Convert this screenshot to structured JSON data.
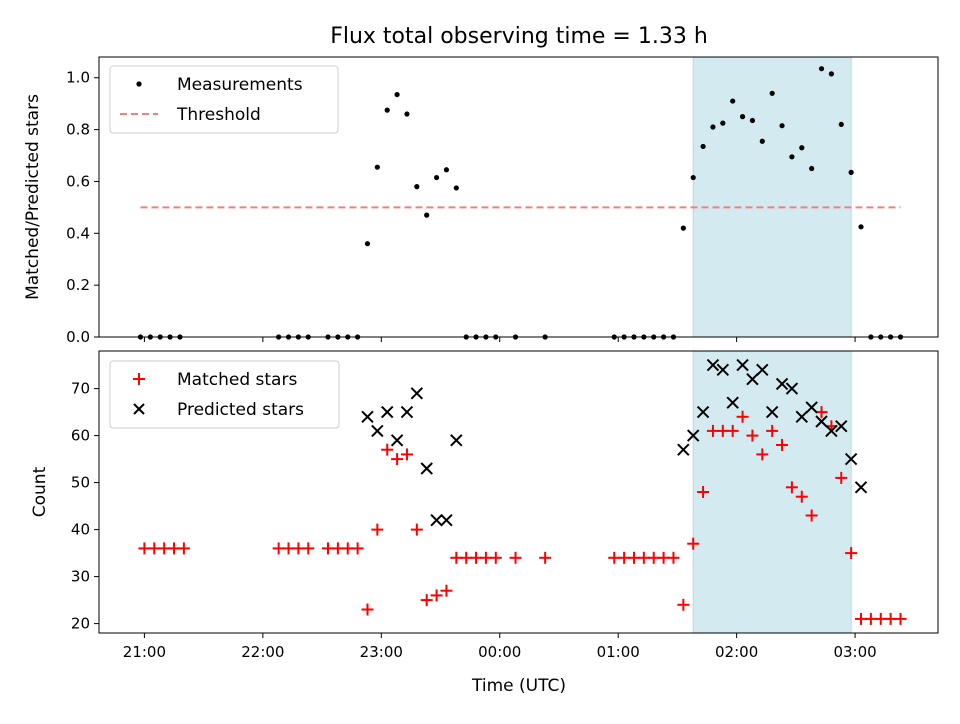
{
  "chart_data": [
    {
      "type": "scatter",
      "title": "Flux total observing time = 1.33 h",
      "ylabel": "Matched/Predicted stars",
      "xlabel": "",
      "xlim": [
        "20:37",
        "03:42"
      ],
      "ylim": [
        0,
        1.08
      ],
      "x_format": "HH:MM (UTC)",
      "xticks": [],
      "yticks": [
        "0.0",
        "0.2",
        "0.4",
        "0.6",
        "0.8",
        "1.0"
      ],
      "highlight_span": [
        "01:38",
        "02:58"
      ],
      "highlight_color": "#d3eaf0",
      "legend_position": "upper-left",
      "series": [
        {
          "name": "Measurements",
          "marker": "dot",
          "color": "#000000",
          "points": [
            [
              "20:58",
              0.0
            ],
            [
              "21:03",
              0.0
            ],
            [
              "21:08",
              0.0
            ],
            [
              "21:13",
              0.0
            ],
            [
              "21:18",
              0.0
            ],
            [
              "22:08",
              0.0
            ],
            [
              "22:13",
              0.0
            ],
            [
              "22:18",
              0.0
            ],
            [
              "22:23",
              0.0
            ],
            [
              "22:33",
              0.0
            ],
            [
              "22:38",
              0.0
            ],
            [
              "22:43",
              0.0
            ],
            [
              "22:48",
              0.0
            ],
            [
              "22:53",
              0.36
            ],
            [
              "22:58",
              0.655
            ],
            [
              "23:03",
              0.875
            ],
            [
              "23:08",
              0.935
            ],
            [
              "23:13",
              0.86
            ],
            [
              "23:18",
              0.58
            ],
            [
              "23:23",
              0.47
            ],
            [
              "23:28",
              0.615
            ],
            [
              "23:33",
              0.645
            ],
            [
              "23:38",
              0.575
            ],
            [
              "23:43",
              0.0
            ],
            [
              "23:48",
              0.0
            ],
            [
              "23:53",
              0.0
            ],
            [
              "23:58",
              0.0
            ],
            [
              "00:08",
              0.0
            ],
            [
              "00:23",
              0.0
            ],
            [
              "00:58",
              0.0
            ],
            [
              "01:03",
              0.0
            ],
            [
              "01:08",
              0.0
            ],
            [
              "01:13",
              0.0
            ],
            [
              "01:18",
              0.0
            ],
            [
              "01:23",
              0.0
            ],
            [
              "01:28",
              0.0
            ],
            [
              "01:33",
              0.42
            ],
            [
              "01:38",
              0.615
            ],
            [
              "01:43",
              0.735
            ],
            [
              "01:48",
              0.81
            ],
            [
              "01:53",
              0.825
            ],
            [
              "01:58",
              0.91
            ],
            [
              "02:03",
              0.85
            ],
            [
              "02:08",
              0.835
            ],
            [
              "02:13",
              0.755
            ],
            [
              "02:18",
              0.94
            ],
            [
              "02:23",
              0.815
            ],
            [
              "02:28",
              0.695
            ],
            [
              "02:33",
              0.73
            ],
            [
              "02:38",
              0.65
            ],
            [
              "02:43",
              1.035
            ],
            [
              "02:48",
              1.015
            ],
            [
              "02:53",
              0.82
            ],
            [
              "02:58",
              0.635
            ],
            [
              "03:03",
              0.425
            ],
            [
              "03:08",
              0.0
            ],
            [
              "03:13",
              0.0
            ],
            [
              "03:18",
              0.0
            ],
            [
              "03:23",
              0.0
            ]
          ]
        },
        {
          "name": "Threshold",
          "marker": "dashed-line",
          "color": "#f08080",
          "points": [
            [
              "20:58",
              0.5
            ],
            [
              "03:23",
              0.5
            ]
          ]
        }
      ]
    },
    {
      "type": "scatter",
      "title": "",
      "ylabel": "Count",
      "xlabel": "Time (UTC)",
      "xlim": [
        "20:37",
        "03:42"
      ],
      "ylim": [
        18,
        78
      ],
      "x_format": "HH:MM (UTC)",
      "xticks": [
        "21:00",
        "22:00",
        "23:00",
        "00:00",
        "01:00",
        "02:00",
        "03:00"
      ],
      "yticks": [
        "20",
        "30",
        "40",
        "50",
        "60",
        "70"
      ],
      "highlight_span": [
        "01:38",
        "02:58"
      ],
      "highlight_color": "#d3eaf0",
      "legend_position": "upper-left",
      "series": [
        {
          "name": "Matched stars",
          "marker": "plus",
          "color": "#ff0000",
          "points": [
            [
              "21:00",
              36
            ],
            [
              "21:05",
              36
            ],
            [
              "21:10",
              36
            ],
            [
              "21:15",
              36
            ],
            [
              "21:20",
              36
            ],
            [
              "22:08",
              36
            ],
            [
              "22:13",
              36
            ],
            [
              "22:18",
              36
            ],
            [
              "22:23",
              36
            ],
            [
              "22:33",
              36
            ],
            [
              "22:38",
              36
            ],
            [
              "22:43",
              36
            ],
            [
              "22:48",
              36
            ],
            [
              "22:53",
              23
            ],
            [
              "22:58",
              40
            ],
            [
              "23:03",
              57
            ],
            [
              "23:08",
              55
            ],
            [
              "23:13",
              56
            ],
            [
              "23:18",
              40
            ],
            [
              "23:23",
              25
            ],
            [
              "23:28",
              26
            ],
            [
              "23:33",
              27
            ],
            [
              "23:38",
              34
            ],
            [
              "23:43",
              34
            ],
            [
              "23:48",
              34
            ],
            [
              "23:53",
              34
            ],
            [
              "23:58",
              34
            ],
            [
              "00:08",
              34
            ],
            [
              "00:23",
              34
            ],
            [
              "00:58",
              34
            ],
            [
              "01:03",
              34
            ],
            [
              "01:08",
              34
            ],
            [
              "01:13",
              34
            ],
            [
              "01:18",
              34
            ],
            [
              "01:23",
              34
            ],
            [
              "01:28",
              34
            ],
            [
              "01:33",
              24
            ],
            [
              "01:38",
              37
            ],
            [
              "01:43",
              48
            ],
            [
              "01:48",
              61
            ],
            [
              "01:53",
              61
            ],
            [
              "01:58",
              61
            ],
            [
              "02:03",
              64
            ],
            [
              "02:08",
              60
            ],
            [
              "02:13",
              56
            ],
            [
              "02:18",
              61
            ],
            [
              "02:23",
              58
            ],
            [
              "02:28",
              49
            ],
            [
              "02:33",
              47
            ],
            [
              "02:38",
              43
            ],
            [
              "02:43",
              65
            ],
            [
              "02:48",
              62
            ],
            [
              "02:53",
              51
            ],
            [
              "02:58",
              35
            ],
            [
              "03:03",
              21
            ],
            [
              "03:08",
              21
            ],
            [
              "03:13",
              21
            ],
            [
              "03:18",
              21
            ],
            [
              "03:23",
              21
            ]
          ]
        },
        {
          "name": "Predicted stars",
          "marker": "x",
          "color": "#000000",
          "points": [
            [
              "22:53",
              64
            ],
            [
              "22:58",
              61
            ],
            [
              "23:03",
              65
            ],
            [
              "23:08",
              59
            ],
            [
              "23:13",
              65
            ],
            [
              "23:18",
              69
            ],
            [
              "23:23",
              53
            ],
            [
              "23:28",
              42
            ],
            [
              "23:33",
              42
            ],
            [
              "23:38",
              59
            ],
            [
              "01:33",
              57
            ],
            [
              "01:38",
              60
            ],
            [
              "01:43",
              65
            ],
            [
              "01:48",
              75
            ],
            [
              "01:53",
              74
            ],
            [
              "01:58",
              67
            ],
            [
              "02:03",
              75
            ],
            [
              "02:08",
              72
            ],
            [
              "02:13",
              74
            ],
            [
              "02:18",
              65
            ],
            [
              "02:23",
              71
            ],
            [
              "02:28",
              70
            ],
            [
              "02:33",
              64
            ],
            [
              "02:38",
              66
            ],
            [
              "02:43",
              63
            ],
            [
              "02:48",
              61
            ],
            [
              "02:53",
              62
            ],
            [
              "02:58",
              55
            ],
            [
              "03:03",
              49
            ]
          ]
        }
      ]
    }
  ]
}
